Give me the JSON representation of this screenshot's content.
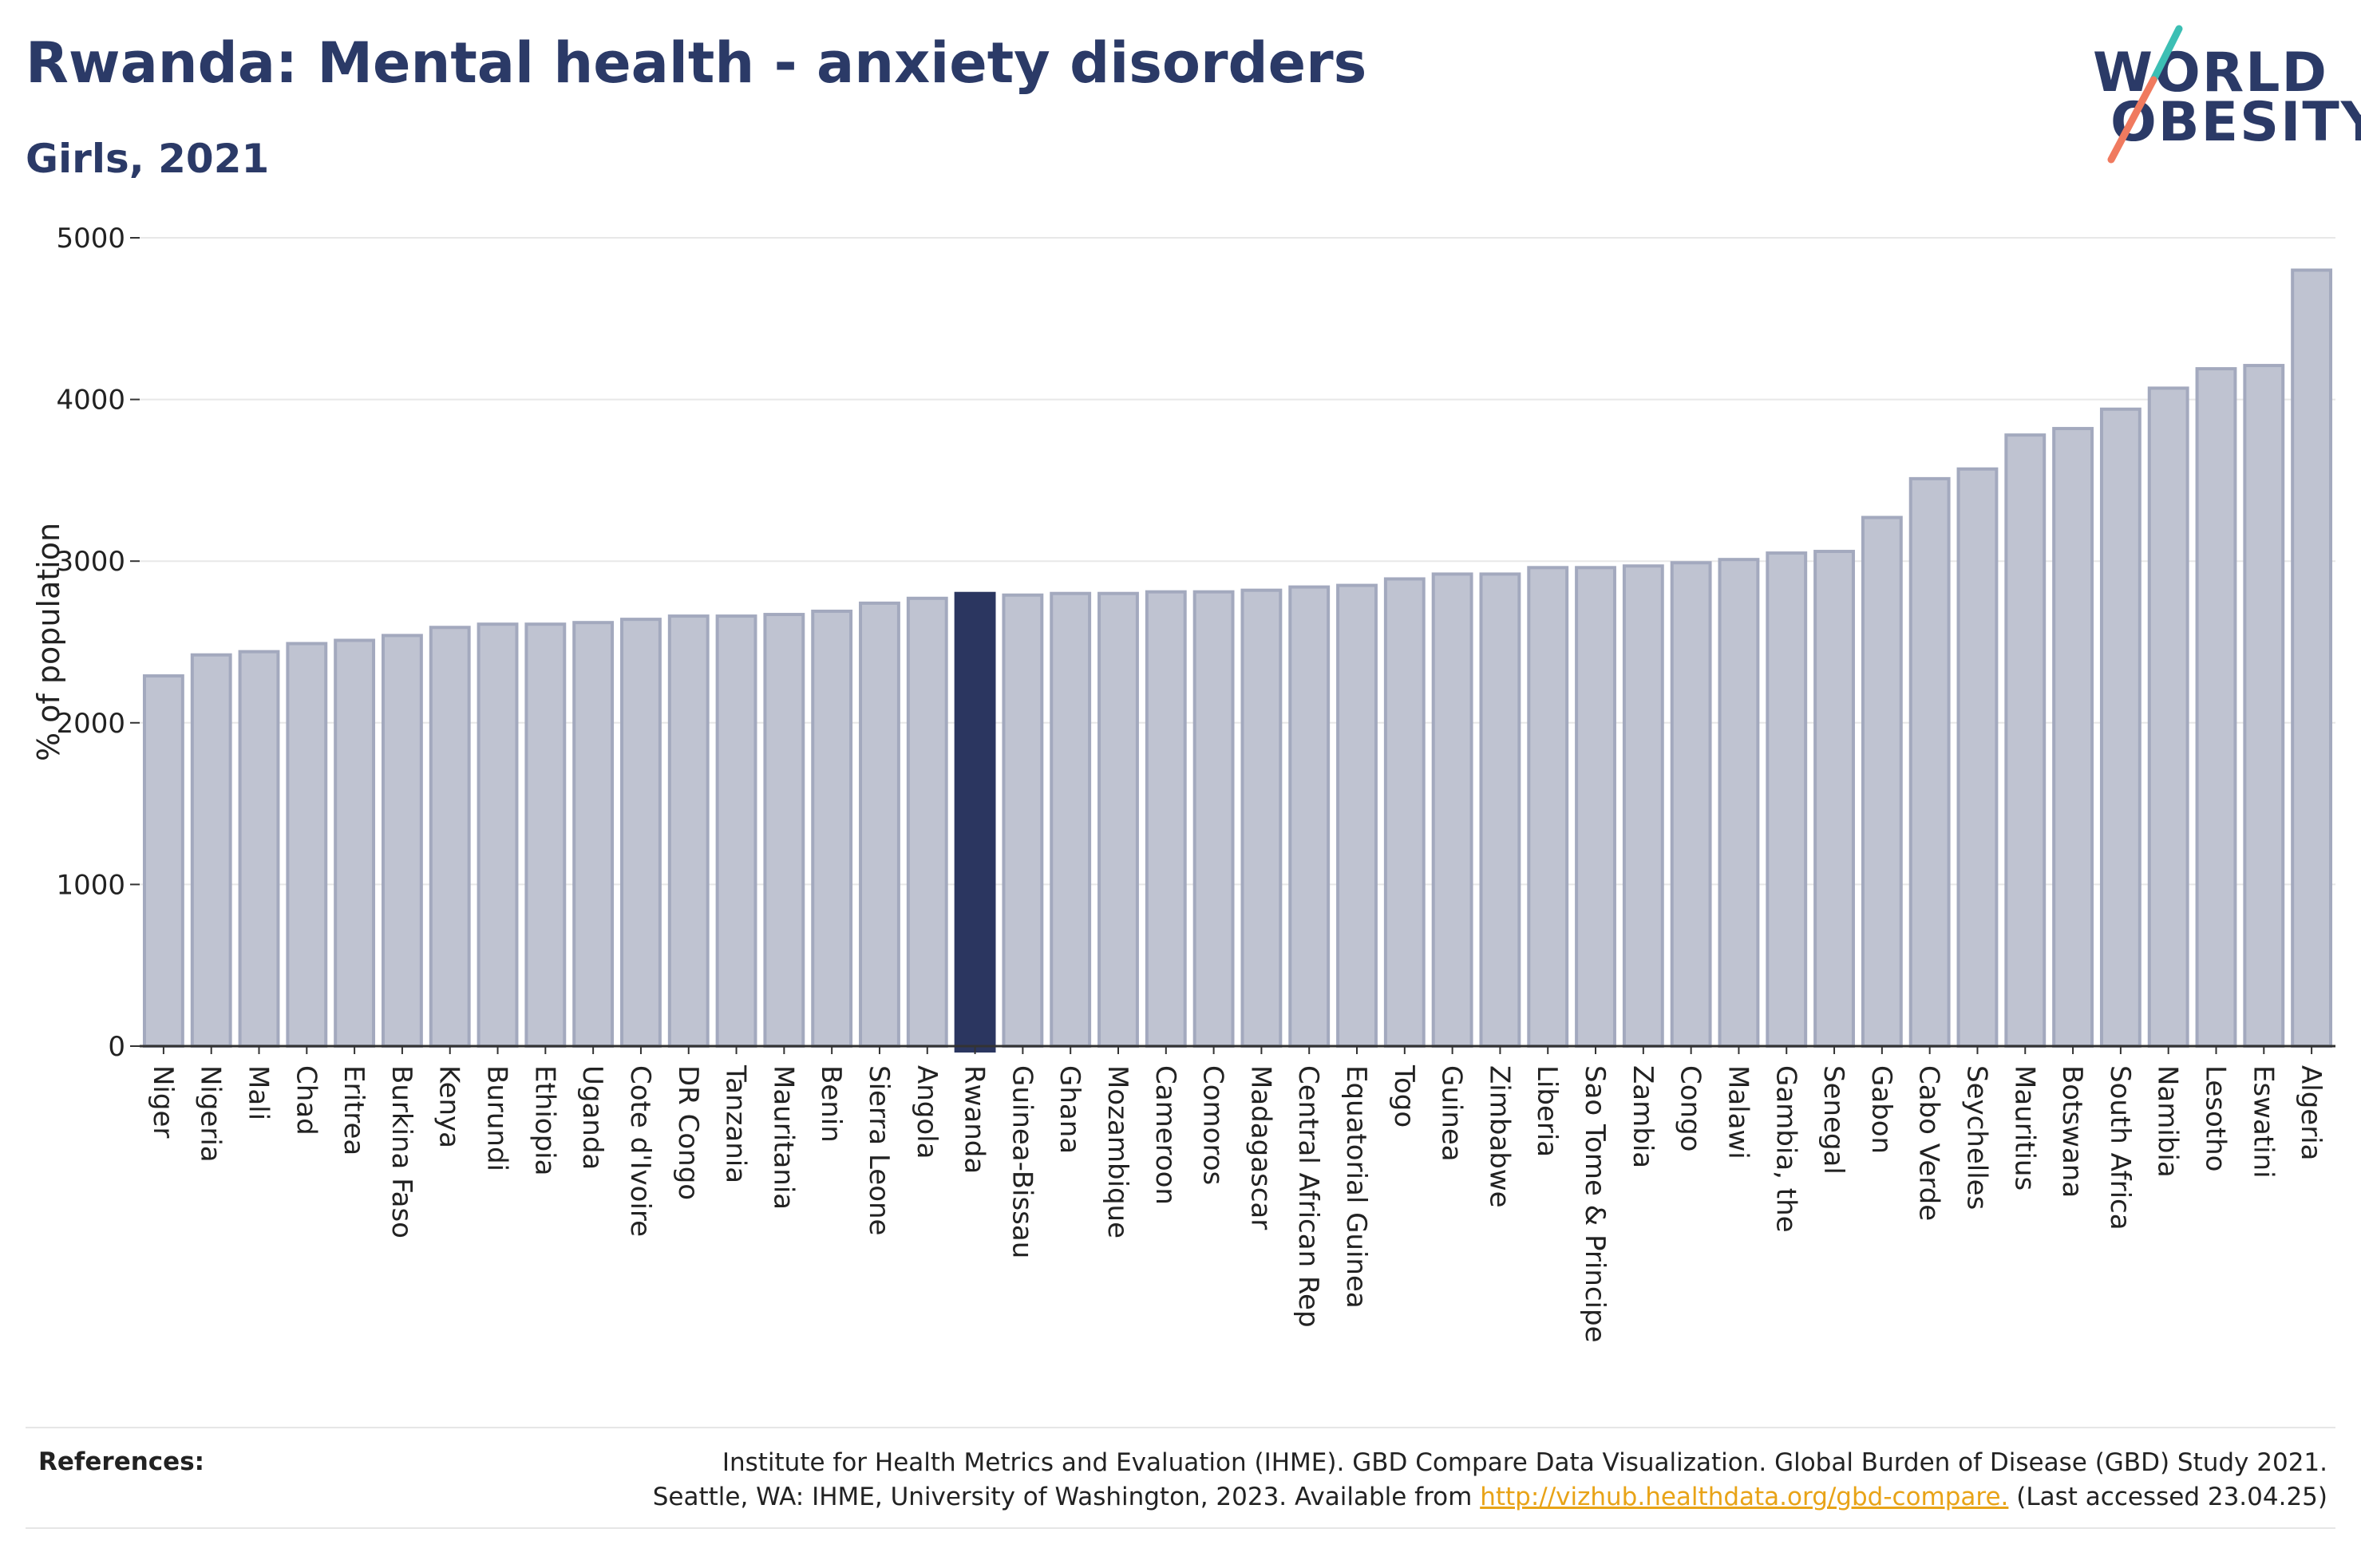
{
  "header": {
    "title": "Rwanda: Mental health - anxiety disorders",
    "subtitle": "Girls, 2021"
  },
  "logo": {
    "line1": "WORLD",
    "line2": "OBESITY",
    "colors": {
      "text": "#2b3a67",
      "slash_top": "#3cbfb4",
      "slash_bottom": "#f07a5f"
    }
  },
  "colors": {
    "bar": "#bfc3d1",
    "bar_edge": "#a3a9be",
    "highlight": "#2b3660",
    "grid": "#e8e8e8",
    "axis": "#333333"
  },
  "chart_data": {
    "type": "bar",
    "title": "Rwanda: Mental health - anxiety disorders",
    "subtitle": "Girls, 2021",
    "xlabel": "",
    "ylabel": "% of population",
    "ylim": [
      0,
      5000
    ],
    "yticks": [
      0,
      1000,
      2000,
      3000,
      4000,
      5000
    ],
    "grid": true,
    "highlight": "Rwanda",
    "categories": [
      "Niger",
      "Nigeria",
      "Mali",
      "Chad",
      "Eritrea",
      "Burkina Faso",
      "Kenya",
      "Burundi",
      "Ethiopia",
      "Uganda",
      "Cote d'Ivoire",
      "DR Congo",
      "Tanzania",
      "Mauritania",
      "Benin",
      "Sierra Leone",
      "Angola",
      "Rwanda",
      "Guinea-Bissau",
      "Ghana",
      "Mozambique",
      "Cameroon",
      "Comoros",
      "Madagascar",
      "Central African Rep",
      "Equatorial Guinea",
      "Togo",
      "Guinea",
      "Zimbabwe",
      "Liberia",
      "Sao Tome & Principe",
      "Zambia",
      "Congo",
      "Malawi",
      "Gambia, the",
      "Senegal",
      "Gabon",
      "Cabo Verde",
      "Seychelles",
      "Mauritius",
      "Botswana",
      "South Africa",
      "Namibia",
      "Lesotho",
      "Eswatini",
      "Algeria"
    ],
    "values": [
      2290,
      2420,
      2440,
      2490,
      2510,
      2540,
      2590,
      2610,
      2610,
      2620,
      2640,
      2660,
      2660,
      2670,
      2690,
      2740,
      2770,
      2800,
      2790,
      2800,
      2800,
      2810,
      2810,
      2820,
      2840,
      2850,
      2890,
      2920,
      2920,
      2960,
      2960,
      2970,
      2990,
      3010,
      3050,
      3060,
      3270,
      3510,
      3570,
      3780,
      3820,
      3940,
      4070,
      4190,
      4210,
      4800
    ]
  },
  "references": {
    "label": "References:",
    "line1": "Institute for Health Metrics and Evaluation (IHME). GBD Compare Data Visualization. Global Burden of Disease (GBD) Study 2021.",
    "line2_prefix": "Seattle, WA: IHME, University of Washington, 2023. Available from ",
    "link_text": "http://vizhub.healthdata.org/gbd-compare.",
    "line2_suffix": " (Last accessed 23.04.25)"
  }
}
